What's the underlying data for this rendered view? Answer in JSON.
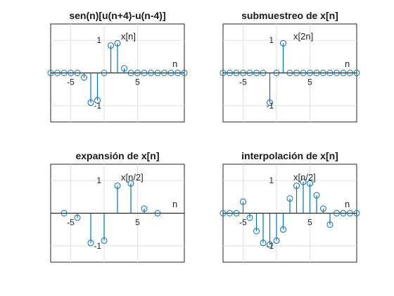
{
  "figure_colors": {
    "stem": "#0072BD",
    "axes_line": "#000000",
    "grid": "#dfdfdf",
    "background": "#ffffff"
  },
  "chart_data": [
    {
      "type": "stem",
      "title": "sen(n)[u(n+4)-u(n-4)]",
      "signal_label": "x[n]",
      "axis_label": "n",
      "xlim": [
        -8,
        12
      ],
      "ylim": [
        -1.5,
        1.5
      ],
      "xticks": [
        -5,
        5
      ],
      "yticks": [
        -1,
        1
      ],
      "grid": true,
      "x": [
        -8,
        -7,
        -6,
        -5,
        -4,
        -3,
        -2,
        -1,
        0,
        1,
        2,
        3,
        4,
        5,
        6,
        7,
        8,
        9,
        10,
        11,
        12
      ],
      "y": [
        0,
        0,
        0,
        0,
        0,
        -0.14,
        -0.91,
        -0.84,
        0,
        0.84,
        0.91,
        0.14,
        0,
        0,
        0,
        0,
        0,
        0,
        0,
        0,
        0
      ]
    },
    {
      "type": "stem",
      "title": "submuestreo de x[n]",
      "signal_label": "x[2n]",
      "axis_label": "n",
      "xlim": [
        -8,
        12
      ],
      "ylim": [
        -1.5,
        1.5
      ],
      "xticks": [
        -5,
        5
      ],
      "yticks": [
        -1,
        1
      ],
      "grid": true,
      "x": [
        -8,
        -7,
        -6,
        -5,
        -4,
        -3,
        -2,
        -1,
        0,
        1,
        2,
        3,
        4,
        5,
        6,
        7,
        8,
        9,
        10,
        11,
        12
      ],
      "y": [
        0,
        0,
        0,
        0,
        0,
        0,
        0,
        -0.91,
        0,
        0.91,
        0,
        0,
        0,
        0,
        0,
        0,
        0,
        0,
        0,
        0,
        0
      ]
    },
    {
      "type": "stem",
      "title": "expansión de x[n]",
      "signal_label": "x[n/2]",
      "axis_label": "n",
      "xlim": [
        -8,
        12
      ],
      "ylim": [
        -1.5,
        1.5
      ],
      "xticks": [
        -5,
        5
      ],
      "yticks": [
        -1,
        1
      ],
      "grid": true,
      "x": [
        -6,
        -4,
        -2,
        0,
        2,
        4,
        6,
        8
      ],
      "y": [
        0,
        -0.14,
        -0.91,
        -0.84,
        0.84,
        0.91,
        0.14,
        0
      ]
    },
    {
      "type": "stem",
      "title": "interpolación de x[n]",
      "signal_label": "x[n/2]",
      "axis_label": "n",
      "xlim": [
        -8,
        12
      ],
      "ylim": [
        -1.5,
        1.5
      ],
      "xticks": [
        -5,
        5
      ],
      "yticks": [
        -1,
        1
      ],
      "grid": true,
      "x": [
        -8,
        -7,
        -6,
        -5,
        -4,
        -3,
        -2,
        -1,
        0,
        1,
        2,
        3,
        4,
        5,
        6,
        7,
        8,
        9,
        10,
        11,
        12
      ],
      "y": [
        0,
        0,
        0,
        0.35,
        -0.14,
        -0.55,
        -0.91,
        -0.96,
        -0.84,
        -0.5,
        0.45,
        0.84,
        0.96,
        0.91,
        0.55,
        0.14,
        -0.35,
        0,
        0,
        0,
        0
      ]
    }
  ]
}
